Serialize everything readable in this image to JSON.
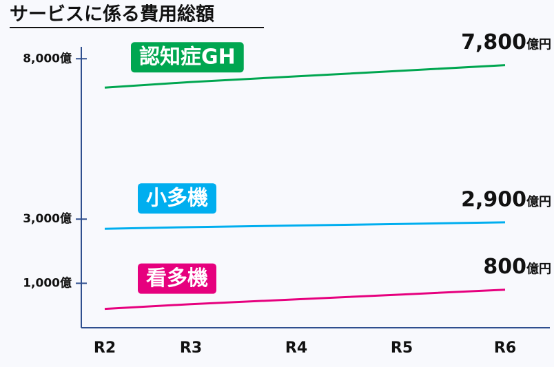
{
  "chart_data": {
    "type": "line",
    "title": "サービスに係る費用総額",
    "categories": [
      "R2",
      "R3",
      "R4",
      "R5",
      "R6"
    ],
    "series": [
      {
        "name": "認知症GH",
        "color": "#00a650",
        "values": [
          7100,
          7275,
          7450,
          7625,
          7800
        ],
        "value_labels": [
          null,
          null,
          null,
          null,
          "7,800"
        ]
      },
      {
        "name": "小多機",
        "color": "#00aeef",
        "values": [
          2700,
          2750,
          2800,
          2850,
          2900
        ],
        "value_labels": [
          null,
          null,
          null,
          null,
          "2,900"
        ]
      },
      {
        "name": "看多機",
        "color": "#e6007e",
        "values": [
          200,
          350,
          500,
          650,
          800
        ],
        "value_labels": [
          null,
          null,
          null,
          null,
          "800"
        ]
      }
    ],
    "value_unit": "億円",
    "ylim": [
      0,
      8500
    ],
    "yticks": [
      {
        "value": 1000,
        "label": "1,000億"
      },
      {
        "value": 3000,
        "label": "3,000億"
      },
      {
        "value": 8000,
        "label": "8,000億"
      }
    ]
  }
}
